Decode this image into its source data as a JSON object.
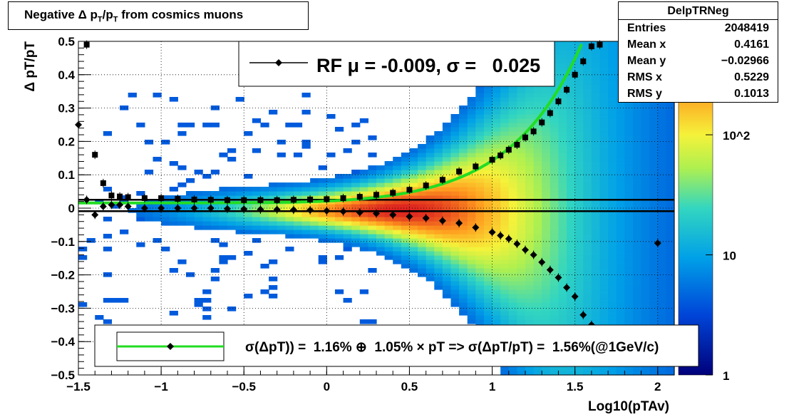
{
  "title": "Negative Δ p_T/p_T from cosmics muons",
  "stats_box": {
    "name": "DelpTRNeg",
    "rows": [
      {
        "label": "Entries",
        "value": "2048419"
      },
      {
        "label": "Mean x",
        "value": "0.4161"
      },
      {
        "label": "Mean y",
        "value": "−0.02966"
      },
      {
        "label": "RMS x",
        "value": "0.5229"
      },
      {
        "label": "RMS y",
        "value": "0.1013"
      }
    ]
  },
  "colors": {
    "fit_curve": "#22dd22",
    "markers": "#000000",
    "zero_band": "#000000"
  },
  "chart_data": {
    "type": "heatmap",
    "xlabel": "Log10(pTAv)",
    "ylabel": "Δ pT/pT",
    "xlim": [
      -1.5,
      2.1
    ],
    "ylim": [
      -0.5,
      0.5
    ],
    "x_ticks": [
      "−1.5",
      "−1",
      "−0.5",
      "0",
      "0.5",
      "1",
      "1.5",
      "2"
    ],
    "x_tick_values": [
      -1.5,
      -1,
      -0.5,
      0,
      0.5,
      1,
      1.5,
      2
    ],
    "y_ticks": [
      "0.5",
      "0.4",
      "0.3",
      "0.2",
      "0.1",
      "0",
      "−0.1",
      "−0.2",
      "−0.3",
      "−0.4",
      "−0.5"
    ],
    "y_tick_values": [
      0.5,
      0.4,
      0.3,
      0.2,
      0.1,
      0,
      -0.1,
      -0.2,
      -0.3,
      -0.4,
      -0.5
    ],
    "color_scale": "log",
    "z_labels": [
      "1",
      "10",
      "10^2"
    ],
    "z_values": [
      1,
      10,
      100
    ],
    "z_max": 600,
    "grid": true,
    "legend_top": {
      "label": "RF μ = -0.009, σ =   0.025"
    },
    "legend_bottom": {
      "label": "σ(ΔpT)) =  1.16% ⊕  1.05% × pT => σ(ΔpT/pT) =  1.56%(@1GeV/c)"
    },
    "zero_band": [
      0.025,
      -0.009
    ],
    "fit_params": {
      "a": 0.0116,
      "b": 0.0105
    },
    "series": [
      {
        "marker": "square",
        "x": [
          -1.45,
          -1.4,
          -1.35,
          -1.3,
          -1.25,
          -1.2,
          -1.1,
          -1.0,
          -0.9,
          -0.8,
          -0.7,
          -0.6,
          -0.5,
          -0.4,
          -0.3,
          -0.2,
          -0.1,
          0.0,
          0.1,
          0.2,
          0.3,
          0.4,
          0.5,
          0.6,
          0.7,
          0.8,
          0.9,
          1.0,
          1.05,
          1.1,
          1.15,
          1.2,
          1.25,
          1.3,
          1.35,
          1.4,
          1.45,
          1.5,
          1.55,
          1.6,
          1.65
        ],
        "y": [
          0.49,
          0.16,
          0.075,
          0.038,
          0.035,
          0.033,
          0.03,
          0.03,
          0.028,
          0.026,
          0.025,
          0.024,
          0.024,
          0.024,
          0.024,
          0.025,
          0.026,
          0.027,
          0.03,
          0.034,
          0.04,
          0.046,
          0.055,
          0.068,
          0.085,
          0.11,
          0.125,
          0.145,
          0.158,
          0.175,
          0.19,
          0.212,
          0.23,
          0.257,
          0.285,
          0.32,
          0.355,
          0.4,
          0.44,
          0.485,
          0.49
        ]
      },
      {
        "marker": "diamond",
        "x": [
          -1.5,
          -1.45,
          -1.4,
          -1.35,
          -1.3,
          -1.25,
          -1.2,
          -1.1,
          -1.0,
          -0.9,
          -0.8,
          -0.7,
          -0.6,
          -0.5,
          -0.4,
          -0.3,
          -0.2,
          -0.1,
          0.0,
          0.1,
          0.2,
          0.3,
          0.4,
          0.5,
          0.6,
          0.7,
          0.8,
          0.9,
          1.0,
          1.05,
          1.1,
          1.15,
          1.2,
          1.25,
          1.3,
          1.35,
          1.4,
          1.45,
          1.5,
          1.55,
          1.6,
          2.0
        ],
        "y": [
          0.25,
          0.025,
          -0.02,
          0.005,
          0.01,
          0.01,
          0.005,
          0.0,
          0.0,
          0.0,
          0.0,
          0.0,
          -0.002,
          -0.003,
          -0.004,
          -0.004,
          -0.005,
          -0.006,
          -0.008,
          -0.01,
          -0.013,
          -0.016,
          -0.02,
          -0.025,
          -0.03,
          -0.038,
          -0.045,
          -0.058,
          -0.072,
          -0.082,
          -0.092,
          -0.107,
          -0.125,
          -0.14,
          -0.162,
          -0.185,
          -0.208,
          -0.238,
          -0.265,
          -0.32,
          -0.35,
          -0.105
        ]
      }
    ]
  }
}
